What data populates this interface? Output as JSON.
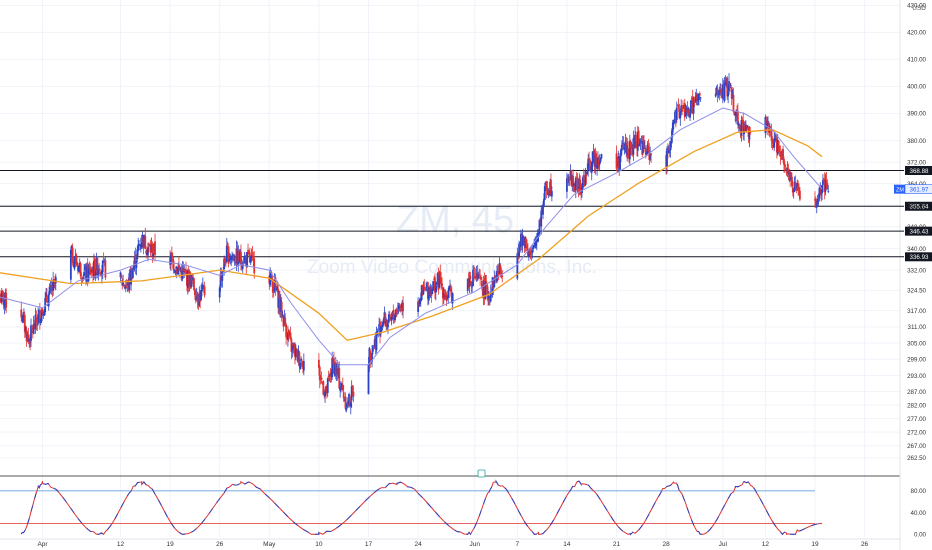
{
  "watermark": {
    "symbol": "ZM, 45",
    "company": "Zoom Video Communications, Inc."
  },
  "chart_data": {
    "type": "candlestick",
    "currency_label": "USD",
    "ylim": [
      258,
      432
    ],
    "y_ticks": [
      262.5,
      267.0,
      272.0,
      277.0,
      282.0,
      287.0,
      293.0,
      299.0,
      305.0,
      311.0,
      317.0,
      324.5,
      332.0,
      340.0,
      348.0,
      356.0,
      364.0,
      372.0,
      380.0,
      390.0,
      400.0,
      410.0,
      420.0,
      430.0
    ],
    "x_ticks": [
      {
        "label": "Apr",
        "date": "2021-04-01"
      },
      {
        "label": "12",
        "date": "2021-04-12"
      },
      {
        "label": "19",
        "date": "2021-04-19"
      },
      {
        "label": "26",
        "date": "2021-04-26"
      },
      {
        "label": "May",
        "date": "2021-05-03"
      },
      {
        "label": "10",
        "date": "2021-05-10"
      },
      {
        "label": "17",
        "date": "2021-05-17"
      },
      {
        "label": "24",
        "date": "2021-05-24"
      },
      {
        "label": "Jun",
        "date": "2021-06-01"
      },
      {
        "label": "7",
        "date": "2021-06-07"
      },
      {
        "label": "14",
        "date": "2021-06-14"
      },
      {
        "label": "21",
        "date": "2021-06-21"
      },
      {
        "label": "28",
        "date": "2021-06-28"
      },
      {
        "label": "Jul",
        "date": "2021-07-06"
      },
      {
        "label": "12",
        "date": "2021-07-12"
      },
      {
        "label": "19",
        "date": "2021-07-19"
      },
      {
        "label": "26",
        "date": "2021-07-26"
      }
    ],
    "x_range": [
      "2021-03-26",
      "2021-07-31"
    ],
    "price_path": [
      [
        "2021-03-26",
        322
      ],
      [
        "2021-03-29",
        316
      ],
      [
        "2021-03-30",
        306
      ],
      [
        "2021-04-01",
        318
      ],
      [
        "2021-04-05",
        338
      ],
      [
        "2021-04-07",
        330
      ],
      [
        "2021-04-09",
        334
      ],
      [
        "2021-04-12",
        328
      ],
      [
        "2021-04-13",
        326
      ],
      [
        "2021-04-15",
        344
      ],
      [
        "2021-04-16",
        340
      ],
      [
        "2021-04-19",
        336
      ],
      [
        "2021-04-21",
        330
      ],
      [
        "2021-04-22",
        328
      ],
      [
        "2021-04-23",
        322
      ],
      [
        "2021-04-26",
        328
      ],
      [
        "2021-04-27",
        338
      ],
      [
        "2021-04-29",
        336
      ],
      [
        "2021-04-30",
        336
      ],
      [
        "2021-05-03",
        330
      ],
      [
        "2021-05-04",
        324
      ],
      [
        "2021-05-05",
        314
      ],
      [
        "2021-05-06",
        304
      ],
      [
        "2021-05-07",
        300
      ],
      [
        "2021-05-10",
        294
      ],
      [
        "2021-05-11",
        286
      ],
      [
        "2021-05-12",
        298
      ],
      [
        "2021-05-13",
        290
      ],
      [
        "2021-05-14",
        282
      ],
      [
        "2021-05-17",
        300
      ],
      [
        "2021-05-18",
        306
      ],
      [
        "2021-05-19",
        314
      ],
      [
        "2021-05-20",
        312
      ],
      [
        "2021-05-21",
        318
      ],
      [
        "2021-05-24",
        322
      ],
      [
        "2021-05-25",
        324
      ],
      [
        "2021-05-27",
        328
      ],
      [
        "2021-05-28",
        322
      ],
      [
        "2021-06-01",
        330
      ],
      [
        "2021-06-02",
        326
      ],
      [
        "2021-06-03",
        323
      ],
      [
        "2021-06-04",
        330
      ],
      [
        "2021-06-07",
        340
      ],
      [
        "2021-06-08",
        344
      ],
      [
        "2021-06-09",
        336
      ],
      [
        "2021-06-10",
        348
      ],
      [
        "2021-06-11",
        362
      ],
      [
        "2021-06-14",
        368
      ],
      [
        "2021-06-15",
        364
      ],
      [
        "2021-06-16",
        362
      ],
      [
        "2021-06-17",
        370
      ],
      [
        "2021-06-18",
        374
      ],
      [
        "2021-06-21",
        370
      ],
      [
        "2021-06-22",
        378
      ],
      [
        "2021-06-23",
        376
      ],
      [
        "2021-06-24",
        381
      ],
      [
        "2021-06-25",
        376
      ],
      [
        "2021-06-28",
        372
      ],
      [
        "2021-06-29",
        386
      ],
      [
        "2021-06-30",
        392
      ],
      [
        "2021-07-01",
        390
      ],
      [
        "2021-07-02",
        394
      ],
      [
        "2021-07-06",
        398
      ],
      [
        "2021-07-07",
        400
      ],
      [
        "2021-07-08",
        388
      ],
      [
        "2021-07-09",
        384
      ],
      [
        "2021-07-12",
        386
      ],
      [
        "2021-07-13",
        380
      ],
      [
        "2021-07-14",
        378
      ],
      [
        "2021-07-15",
        370
      ],
      [
        "2021-07-16",
        362
      ],
      [
        "2021-07-19",
        356
      ],
      [
        "2021-07-20",
        361.97
      ]
    ],
    "ma_fast_path": [
      [
        "2021-03-26",
        322
      ],
      [
        "2021-04-01",
        318
      ],
      [
        "2021-04-06",
        328
      ],
      [
        "2021-04-12",
        332
      ],
      [
        "2021-04-16",
        336
      ],
      [
        "2021-04-21",
        334
      ],
      [
        "2021-04-26",
        330
      ],
      [
        "2021-04-29",
        334
      ],
      [
        "2021-05-03",
        332
      ],
      [
        "2021-05-06",
        320
      ],
      [
        "2021-05-10",
        306
      ],
      [
        "2021-05-13",
        297
      ],
      [
        "2021-05-17",
        297
      ],
      [
        "2021-05-20",
        307
      ],
      [
        "2021-05-25",
        316
      ],
      [
        "2021-06-01",
        324
      ],
      [
        "2021-06-07",
        334
      ],
      [
        "2021-06-11",
        348
      ],
      [
        "2021-06-15",
        360
      ],
      [
        "2021-06-21",
        368
      ],
      [
        "2021-06-25",
        374
      ],
      [
        "2021-06-30",
        384
      ],
      [
        "2021-07-06",
        392
      ],
      [
        "2021-07-09",
        390
      ],
      [
        "2021-07-13",
        384
      ],
      [
        "2021-07-16",
        374
      ],
      [
        "2021-07-19",
        365
      ],
      [
        "2021-07-20",
        362
      ]
    ],
    "ma_slow_path": [
      [
        "2021-03-26",
        331
      ],
      [
        "2021-04-05",
        327
      ],
      [
        "2021-04-15",
        328
      ],
      [
        "2021-04-26",
        332
      ],
      [
        "2021-05-03",
        329
      ],
      [
        "2021-05-10",
        316
      ],
      [
        "2021-05-14",
        306
      ],
      [
        "2021-05-19",
        309
      ],
      [
        "2021-05-26",
        315
      ],
      [
        "2021-06-03",
        323
      ],
      [
        "2021-06-10",
        336
      ],
      [
        "2021-06-17",
        352
      ],
      [
        "2021-06-24",
        364
      ],
      [
        "2021-07-02",
        376
      ],
      [
        "2021-07-08",
        383
      ],
      [
        "2021-07-13",
        384
      ],
      [
        "2021-07-18",
        378
      ],
      [
        "2021-07-20",
        374
      ]
    ],
    "horizontal_levels": [
      {
        "value": 368.88,
        "label": "368.88"
      },
      {
        "value": 355.64,
        "label": "355.64"
      },
      {
        "value": 346.43,
        "label": "346.43"
      },
      {
        "value": 336.93,
        "label": "336.93"
      }
    ],
    "last_price": {
      "symbol": "ZM",
      "value": 361.97,
      "label": "361.97"
    },
    "oscillator": {
      "ylim": [
        -5,
        100
      ],
      "y_ticks": [
        0.0,
        40.0,
        80.0
      ],
      "y_tick_labels": [
        "0.00",
        "40.00",
        "80.00"
      ],
      "levels": [
        80,
        20
      ],
      "cycle_peaks": [
        "2021-04-01",
        "2021-04-15",
        "2021-04-29",
        "2021-05-21",
        "2021-06-04",
        "2021-06-16",
        "2021-06-29",
        "2021-07-09"
      ],
      "cycle_troughs": [
        "2021-03-29",
        "2021-04-09",
        "2021-04-21",
        "2021-05-10",
        "2021-05-31",
        "2021-06-10",
        "2021-06-23",
        "2021-07-03",
        "2021-07-15"
      ],
      "end_value": 20
    }
  }
}
